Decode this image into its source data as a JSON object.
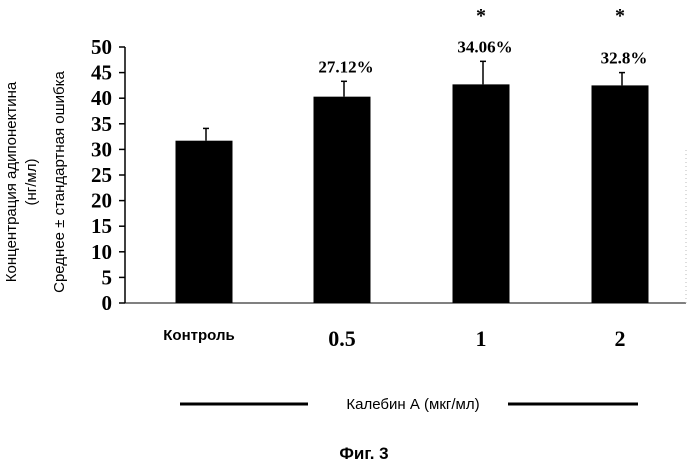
{
  "chart_data": {
    "type": "bar",
    "categories": [
      "Контроль",
      "0.5",
      "1",
      "2"
    ],
    "values": [
      31.7,
      40.3,
      42.7,
      42.5
    ],
    "errors": [
      2.4,
      3.0,
      4.5,
      2.5
    ],
    "value_labels": [
      "",
      "27.12%",
      "34.06%",
      "32.8%"
    ],
    "significance": [
      "",
      "",
      "*",
      "*"
    ],
    "ylabel_line1": "Концентрация адипонектина",
    "ylabel_line2": "(нг/мл)",
    "ylabel_line3": "Среднее ± стандартная ошибка",
    "xlabel": "Калебин А (мкг/мл)",
    "ylim": [
      0,
      50
    ],
    "yticks": [
      0,
      5,
      10,
      15,
      20,
      25,
      30,
      35,
      40,
      45,
      50
    ],
    "grid": false,
    "bar_color": "#000000"
  },
  "caption": "Фиг. 3"
}
